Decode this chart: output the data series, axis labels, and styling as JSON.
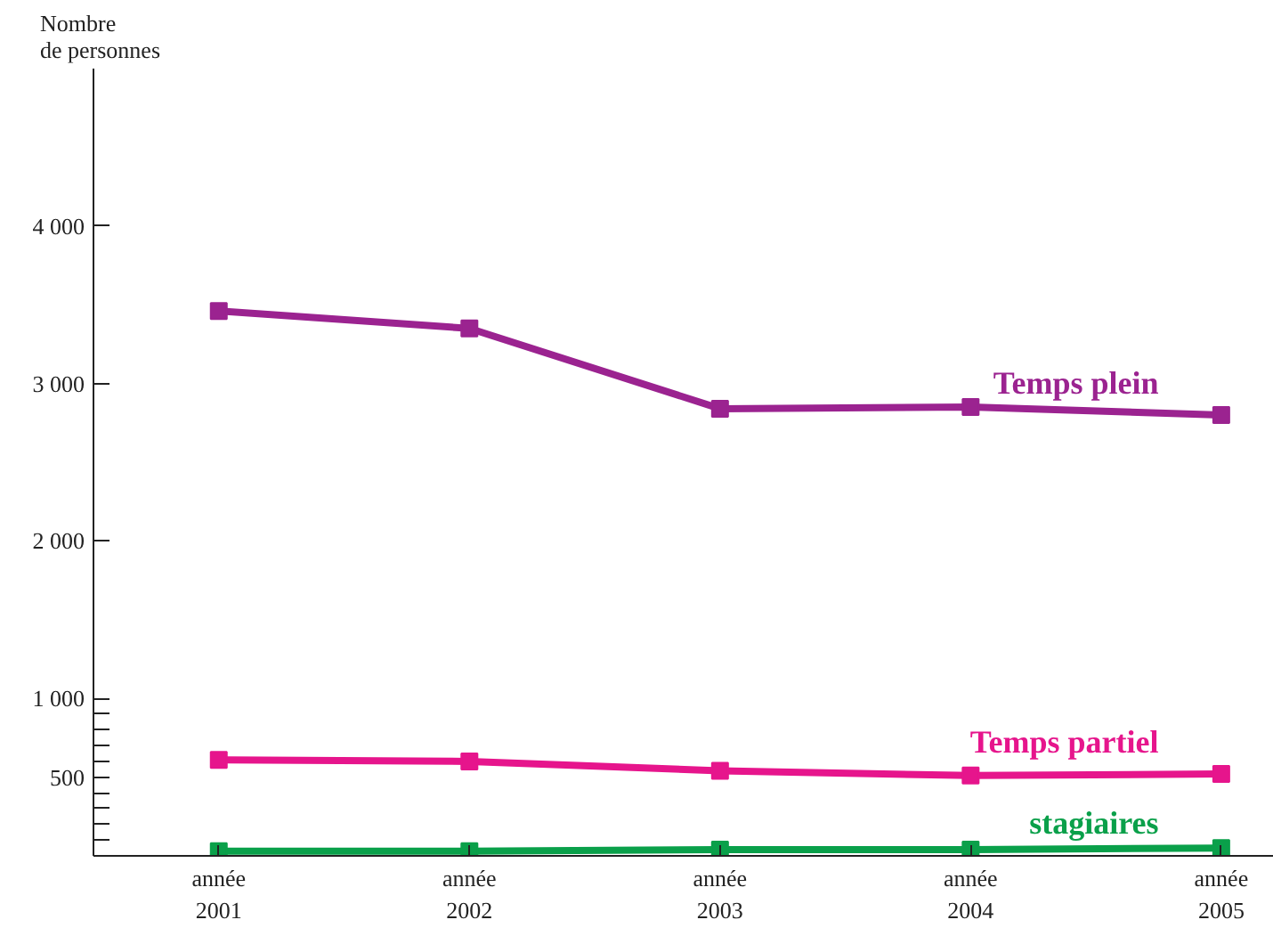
{
  "chart_data": {
    "type": "line",
    "ylabel": "Nombre\nde personnes",
    "categories": [
      "année\n2001",
      "année\n2002",
      "année\n2003",
      "année\n2004",
      "année\n2005"
    ],
    "series": [
      {
        "name": "Temps plein",
        "color": "#9b2390",
        "values": [
          3460,
          3350,
          2840,
          2850,
          2800
        ]
      },
      {
        "name": "Temps partiel",
        "color": "#e6158c",
        "values": [
          610,
          600,
          540,
          510,
          520
        ]
      },
      {
        "name": "stagiaires",
        "color": "#0aa04a",
        "values": [
          30,
          30,
          40,
          40,
          50
        ]
      }
    ],
    "ylim": [
      0,
      5000
    ],
    "yticks": [
      {
        "value": 100,
        "label": null
      },
      {
        "value": 200,
        "label": null
      },
      {
        "value": 300,
        "label": null
      },
      {
        "value": 400,
        "label": null
      },
      {
        "value": 500,
        "label": "500"
      },
      {
        "value": 600,
        "label": null
      },
      {
        "value": 700,
        "label": null
      },
      {
        "value": 800,
        "label": null
      },
      {
        "value": 900,
        "label": null
      },
      {
        "value": 1000,
        "label": "1 000"
      },
      {
        "value": 2000,
        "label": "2 000"
      },
      {
        "value": 3000,
        "label": "3 000"
      },
      {
        "value": 4000,
        "label": "4 000"
      }
    ],
    "grid": false,
    "legend": false,
    "marker": "square",
    "line_style": "solid"
  }
}
